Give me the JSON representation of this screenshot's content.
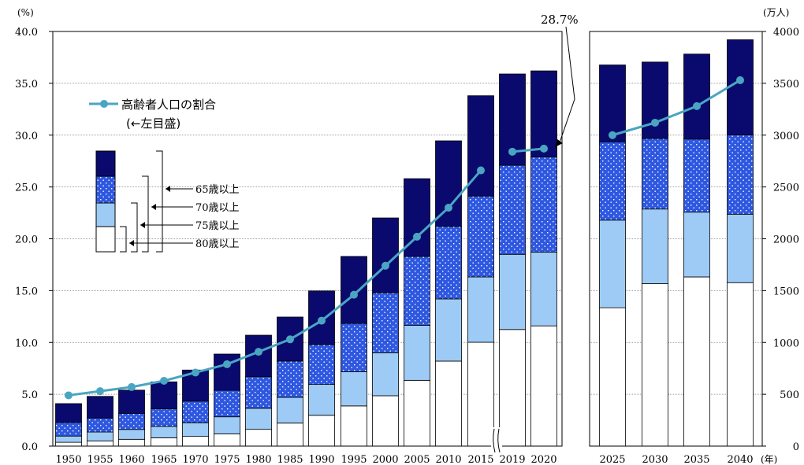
{
  "colors": {
    "age65_69": "#0a0a6e",
    "age70_74": "#2f58e0",
    "age75_79": "#9ecbf5",
    "age80plus": "#ffffff",
    "ratio_line": "#4aa5c2",
    "axis": "#000000",
    "grid": "#808080"
  },
  "chart_data": {
    "type": "bar",
    "stacked": true,
    "categories": [
      "1950",
      "1955",
      "1960",
      "1965",
      "1970",
      "1975",
      "1980",
      "1985",
      "1990",
      "1995",
      "2000",
      "2005",
      "2010",
      "2015",
      "2019",
      "2020",
      "2025",
      "2030",
      "2035",
      "2040"
    ],
    "left_axis": {
      "unit_label": "(%)",
      "ylim": [
        0,
        40
      ],
      "ticks": [
        "0.0",
        "5.0",
        "10.0",
        "15.0",
        "20.0",
        "25.0",
        "30.0",
        "35.0",
        "40.0"
      ]
    },
    "right_axis": {
      "unit_label": "(万人)",
      "ylim": [
        0,
        4000
      ],
      "ticks": [
        "0",
        "500",
        "1000",
        "1500",
        "2000",
        "2500",
        "3000",
        "3500",
        "4000"
      ]
    },
    "x_unit_label": "(年)",
    "series": [
      {
        "name": "80歳以上",
        "key": "age80plus",
        "values": [
          37,
          49,
          66,
          80,
          94,
          118,
          162,
          222,
          297,
          388,
          486,
          635,
          820,
          1002,
          1125,
          1160,
          1335,
          1567,
          1632,
          1577
        ]
      },
      {
        "name": "75歳以上",
        "key": "age75_79",
        "values": [
          60,
          87,
          95,
          110,
          130,
          165,
          203,
          248,
          298,
          330,
          415,
          530,
          600,
          630,
          725,
          712,
          845,
          720,
          625,
          660
        ]
      },
      {
        "name": "70歳以上",
        "key": "age70_74",
        "values": [
          130,
          135,
          155,
          170,
          210,
          255,
          305,
          350,
          385,
          465,
          580,
          665,
          700,
          780,
          860,
          918,
          755,
          680,
          705,
          765
        ]
      },
      {
        "name": "65歳以上",
        "key": "age65_69",
        "values": [
          183,
          209,
          224,
          260,
          300,
          350,
          400,
          425,
          517,
          647,
          720,
          750,
          825,
          968,
          880,
          830,
          742,
          738,
          820,
          918
        ]
      }
    ],
    "ratio_line": {
      "name": "高齢者人口の割合",
      "axis": "left",
      "segments": [
        {
          "x": [
            "1950",
            "1955",
            "1960",
            "1965",
            "1970",
            "1975",
            "1980",
            "1985",
            "1990",
            "1995",
            "2000",
            "2005",
            "2010",
            "2015"
          ],
          "values": [
            4.9,
            5.3,
            5.7,
            6.3,
            7.1,
            7.9,
            9.1,
            10.3,
            12.1,
            14.6,
            17.4,
            20.2,
            23.0,
            26.6
          ]
        },
        {
          "x": [
            "2019",
            "2020"
          ],
          "values": [
            28.4,
            28.7
          ]
        },
        {
          "x": [
            "2025",
            "2030",
            "2035",
            "2040"
          ],
          "values": [
            30.0,
            31.2,
            32.8,
            35.3
          ]
        }
      ]
    },
    "annotation": "28.7%",
    "legend": {
      "line_label": "高齢者人口の割合",
      "line_sublabel": "(←左目盛)",
      "placement": "top-left"
    }
  }
}
